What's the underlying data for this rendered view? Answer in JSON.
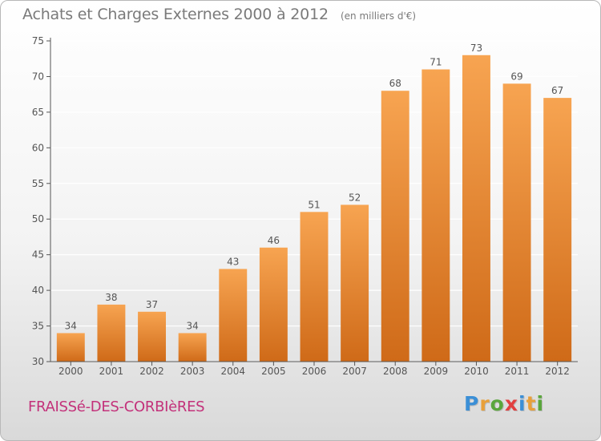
{
  "header": {
    "title": "Achats et Charges Externes 2000 à 2012",
    "unit": "(en milliers d'€)"
  },
  "footer": {
    "commune": "FRAISSé-DES-CORBIèRES",
    "brand": [
      "P",
      "r",
      "o",
      "x",
      "i",
      "t",
      "i"
    ],
    "brand_colors": [
      "#3b8fd6",
      "#e8a03a",
      "#5aa63c",
      "#e24040",
      "#3b8fd6",
      "#e8a03a",
      "#5aa63c"
    ]
  },
  "colors": {
    "bar_top": "#f7a451",
    "bar_bottom": "#cf6a18",
    "axis": "#555555",
    "grid": "#ffffff",
    "text": "#555555"
  },
  "chart_data": {
    "type": "bar",
    "title": "Achats et Charges Externes 2000 à 2012",
    "subtitle": "(en milliers d'€)",
    "categories": [
      "2000",
      "2001",
      "2002",
      "2003",
      "2004",
      "2005",
      "2006",
      "2007",
      "2008",
      "2009",
      "2010",
      "2011",
      "2012"
    ],
    "values": [
      34,
      38,
      37,
      34,
      43,
      46,
      51,
      52,
      68,
      71,
      73,
      69,
      67
    ],
    "xlabel": "",
    "ylabel": "",
    "ylim": [
      30,
      75
    ],
    "yticks": [
      30,
      35,
      40,
      45,
      50,
      55,
      60,
      65,
      70,
      75
    ],
    "grid": true,
    "legend": "none"
  }
}
